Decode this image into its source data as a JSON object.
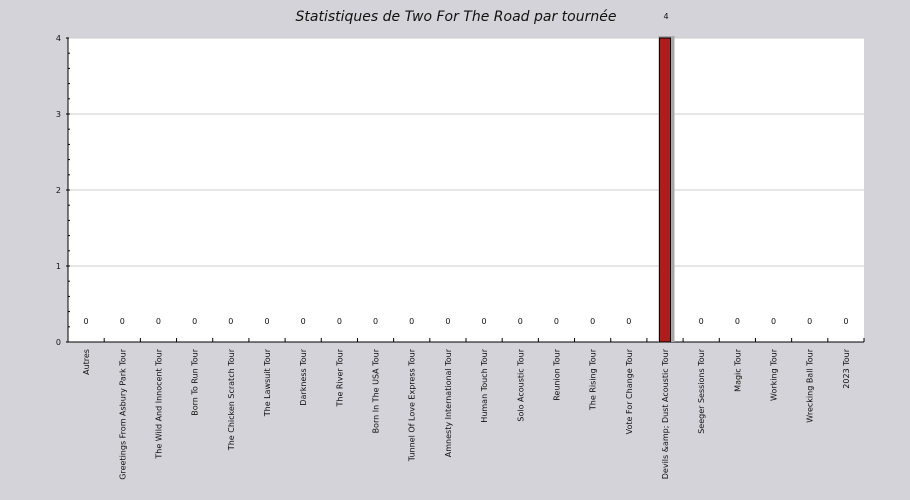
{
  "chart_data": {
    "type": "bar",
    "title": "Statistiques de Two For The Road par tournée",
    "xlabel": "",
    "ylabel": "",
    "categories": [
      "Autres",
      "Greetings From Asbury Park Tour",
      "The Wild And Innocent Tour",
      "Born To Run Tour",
      "The Chicken Scratch Tour",
      "The Lawsuit Tour",
      "Darkness Tour",
      "The River Tour",
      "Born In The USA Tour",
      "Tunnel Of Love Express Tour",
      "Amnesty International Tour",
      "Human Touch Tour",
      "Solo Acoustic Tour",
      "Reunion Tour",
      "The Rising Tour",
      "Vote For Change Tour",
      "Devils &amp; Dust Acoustic Tour",
      "Seeger Sessions Tour",
      "Magic Tour",
      "Working Tour",
      "Wrecking Ball Tour",
      "2023 Tour"
    ],
    "values": [
      0,
      0,
      0,
      0,
      0,
      0,
      0,
      0,
      0,
      0,
      0,
      0,
      0,
      0,
      0,
      0,
      4,
      0,
      0,
      0,
      0,
      0
    ],
    "ylim": [
      0,
      4
    ],
    "yticks": [
      0,
      1,
      2,
      3,
      4
    ],
    "grid": true,
    "colors": {
      "background": "#d4d3d9",
      "plot_area": "#ffffff",
      "bar": "#b01c1c",
      "bar_shadow": "#a8a8a8",
      "grid": "#cccccc"
    }
  }
}
